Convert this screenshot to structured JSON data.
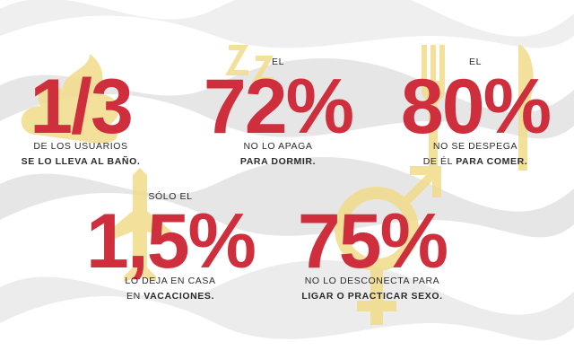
{
  "stats": [
    {
      "figure": "1/3",
      "caption": [
        [
          {
            "text": "DE LOS USUARIOS"
          }
        ],
        [
          {
            "text": "SE LO LLEVA AL BAÑO.",
            "bold": true
          }
        ]
      ]
    },
    {
      "prefix": "EL",
      "figure": "72%",
      "caption": [
        [
          {
            "text": "NO LO APAGA"
          }
        ],
        [
          {
            "text": "PARA DORMIR.",
            "bold": true
          }
        ]
      ]
    },
    {
      "prefix": "EL",
      "figure": "80%",
      "caption": [
        [
          {
            "text": "NO SE DESPEGA"
          }
        ],
        [
          {
            "text": "DE ÉL "
          },
          {
            "text": "PARA COMER.",
            "bold": true
          }
        ]
      ]
    },
    {
      "prefix": "SÓLO EL",
      "figure": "1,5%",
      "caption": [
        [
          {
            "text": "LO DEJA EN CASA"
          }
        ],
        [
          {
            "text": "EN "
          },
          {
            "text": "VACACIONES.",
            "bold": true
          }
        ]
      ]
    },
    {
      "figure": "75%",
      "caption": [
        [
          {
            "text": "NO LO DESCONECTA PARA"
          }
        ],
        [
          {
            "text": "LIGAR O PRACTICAR SEXO.",
            "bold": true
          }
        ]
      ]
    }
  ]
}
